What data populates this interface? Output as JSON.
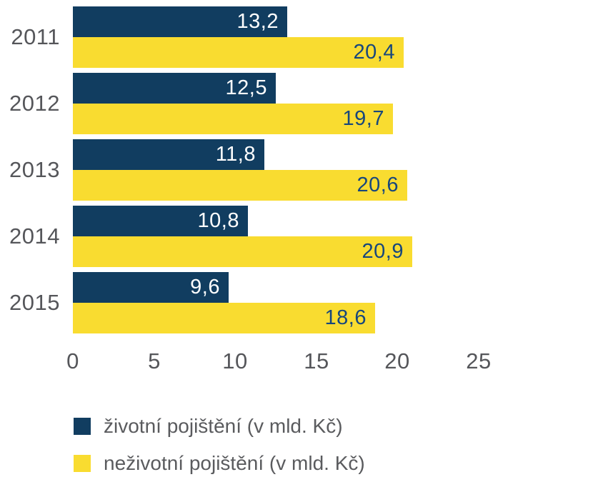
{
  "colors": {
    "life_bar": "#113d60",
    "nonlife_bar": "#f9dc30",
    "value_on_life": "#ffffff",
    "value_on_nonlife": "#17477d",
    "axis_text": "#55565a",
    "legend_text": "#5a5b5e",
    "background": "#ffffff"
  },
  "chart_data": {
    "type": "bar",
    "orientation": "horizontal",
    "title": "",
    "xlabel": "",
    "ylabel": "",
    "categories": [
      "2011",
      "2012",
      "2013",
      "2014",
      "2015"
    ],
    "series": [
      {
        "name": "životní pojištění (v mld. Kč)",
        "key": "life",
        "values": [
          13.2,
          12.5,
          11.8,
          10.8,
          9.6
        ],
        "labels": [
          "13,2",
          "12,5",
          "11,8",
          "10,8",
          "9,6"
        ]
      },
      {
        "name": "neživotní pojištění (v mld. Kč)",
        "key": "nonlife",
        "values": [
          20.4,
          19.7,
          20.6,
          20.9,
          18.6
        ],
        "labels": [
          "20,4",
          "19,7",
          "20,6",
          "20,9",
          "18,6"
        ]
      }
    ],
    "x_ticks": [
      0,
      5,
      10,
      15,
      20,
      25
    ],
    "xlim": [
      0,
      25
    ],
    "grid": false,
    "legend_position": "bottom-left",
    "value_labels": "inside-end"
  }
}
